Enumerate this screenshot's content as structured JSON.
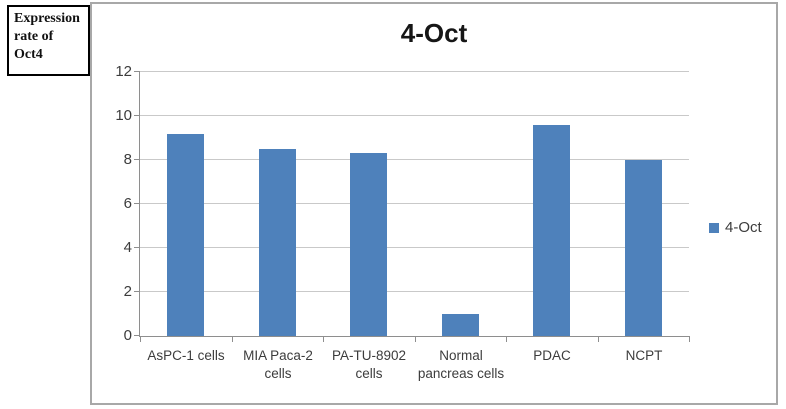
{
  "textbox": {
    "lines": [
      "Expression",
      "rate of",
      "Oct4"
    ]
  },
  "chart_data": {
    "type": "bar",
    "title": "4-Oct",
    "categories": [
      "AsPC-1 cells",
      "MIA Paca-2\ncells",
      "PA-TU-8902\ncells",
      "Normal\npancreas cells",
      "PDAC",
      "NCPT"
    ],
    "values": [
      9.2,
      8.5,
      8.3,
      1,
      9.6,
      8
    ],
    "series_name": "4-Oct",
    "xlabel": "",
    "ylabel": "",
    "ylim": [
      0,
      12
    ],
    "ytick_step": 2,
    "grid": true,
    "legend_position": "right",
    "bar_color": "#4e81bb",
    "gridline_color": "#c9c9c9",
    "axis_color": "#8e8e8e"
  },
  "legend": {
    "label": "4-Oct",
    "swatch_color": "#4e81bb"
  }
}
